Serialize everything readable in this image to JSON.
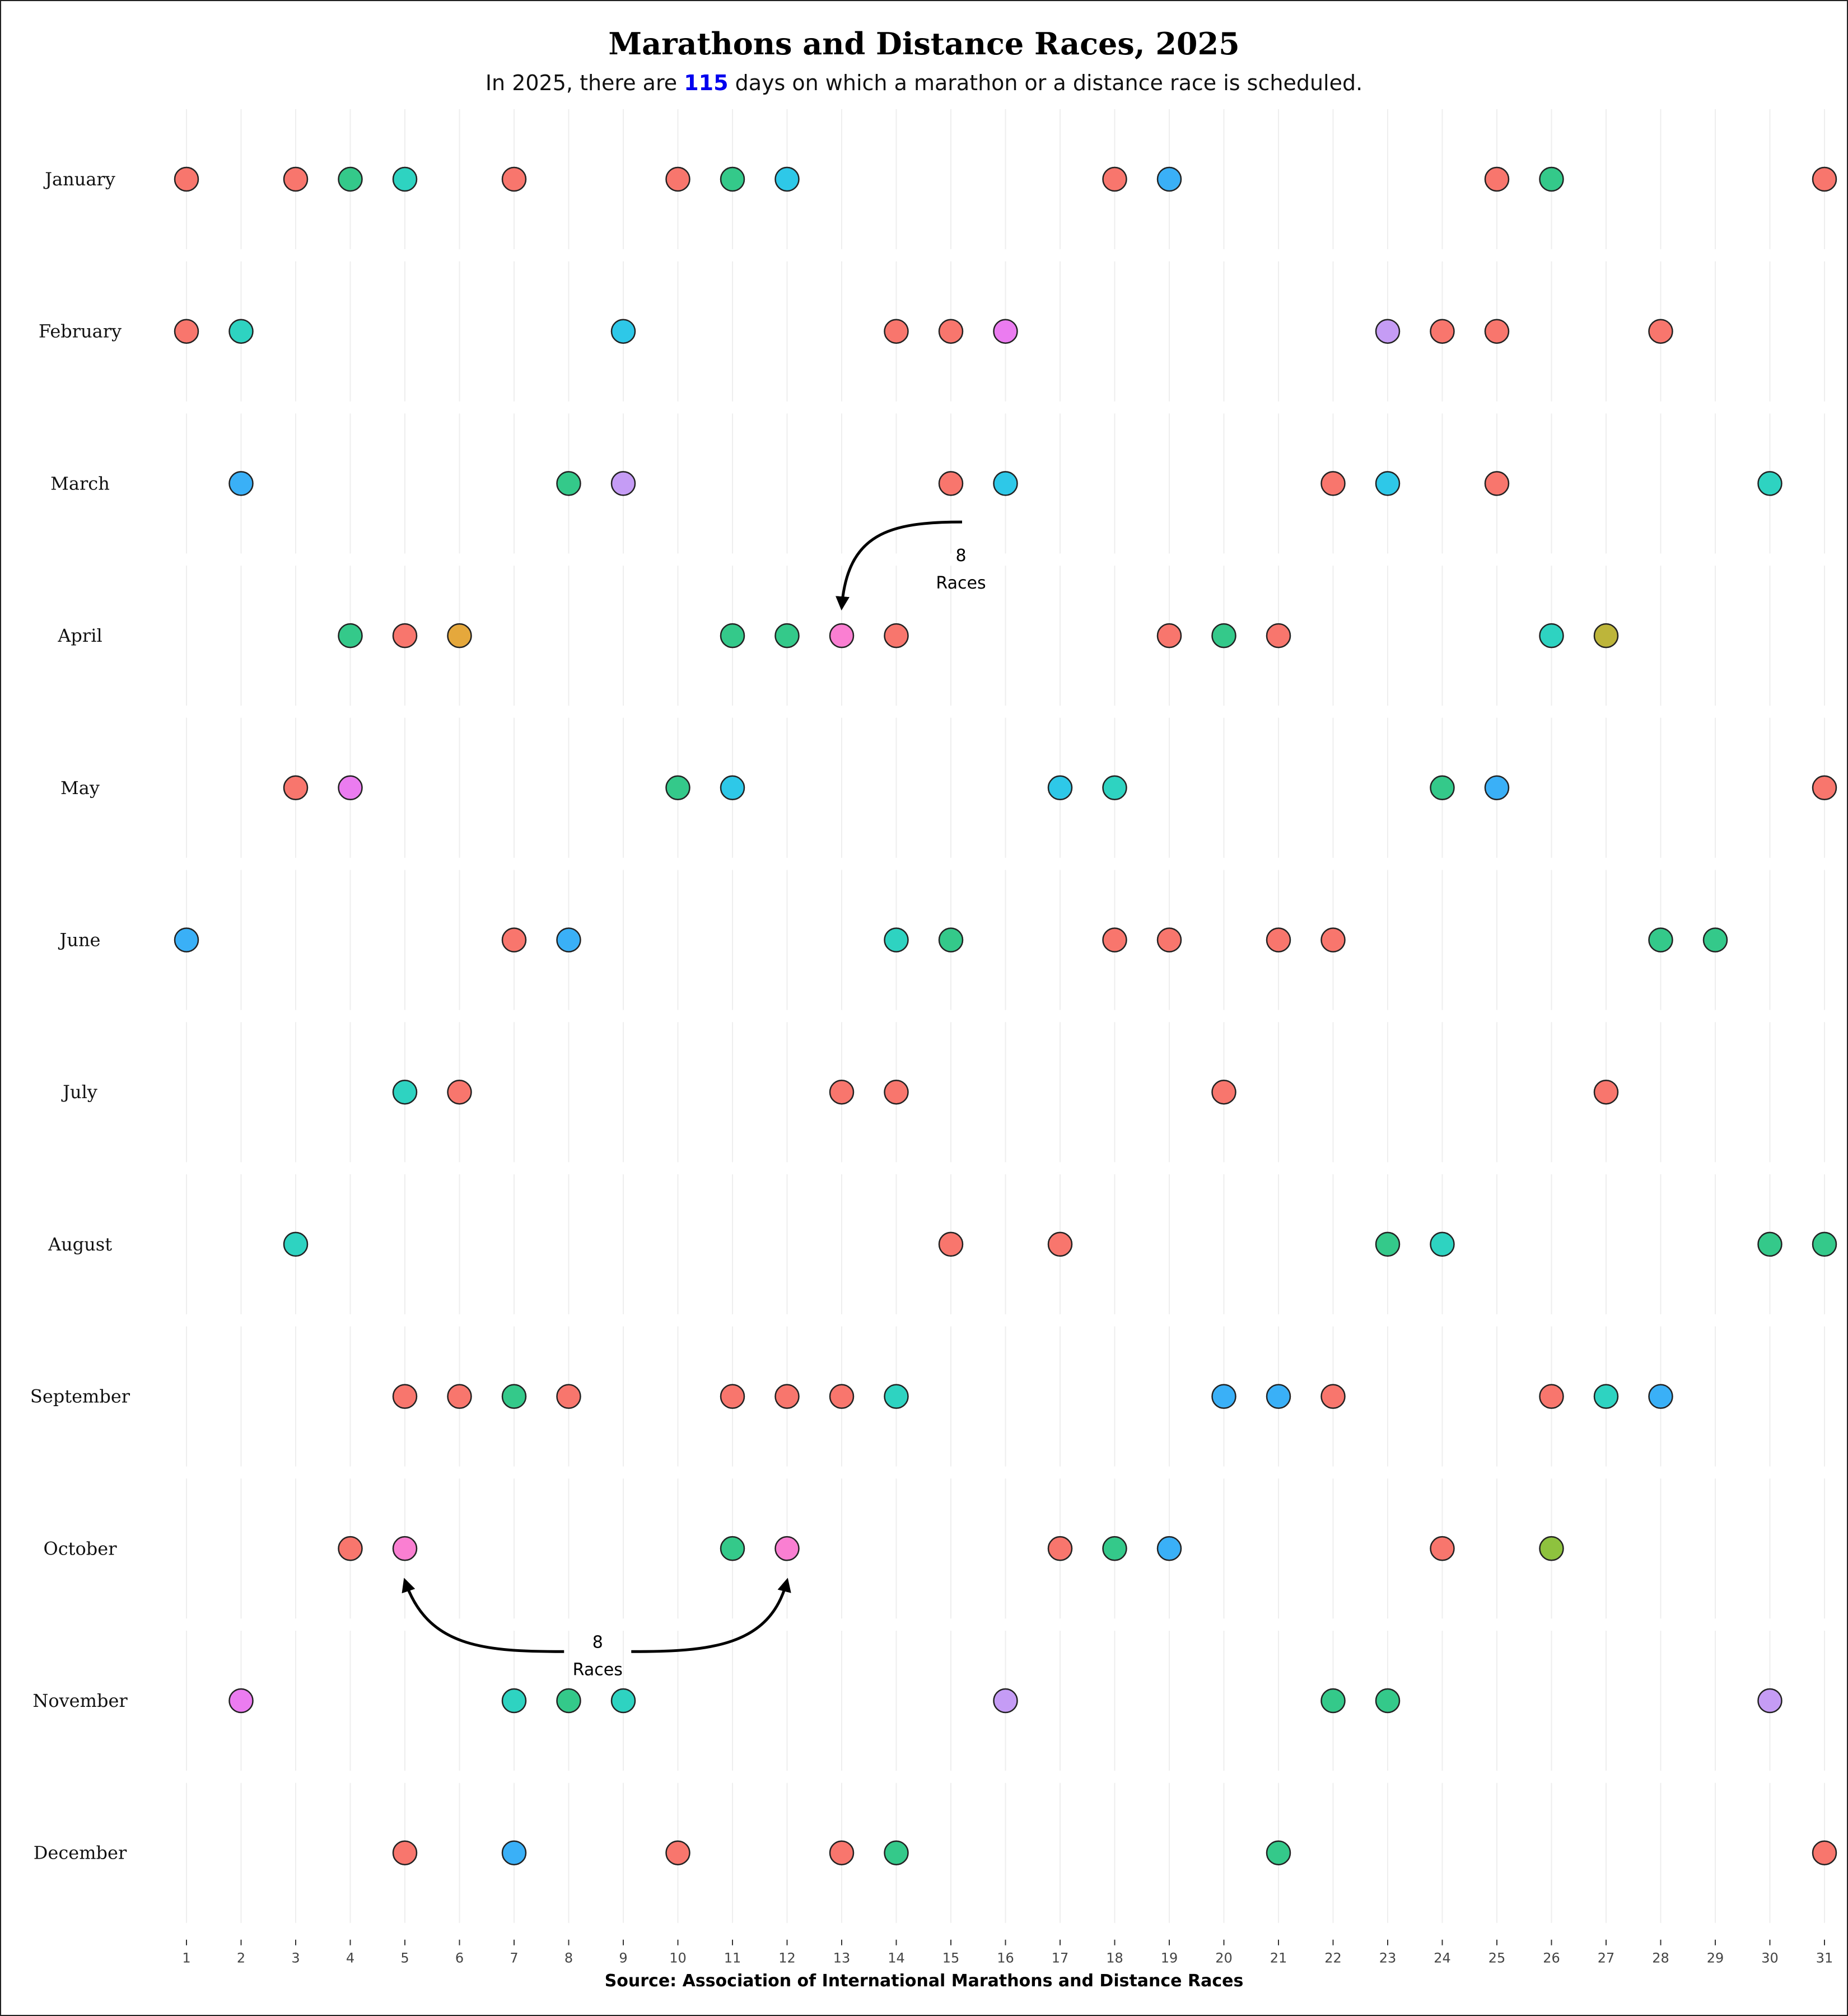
{
  "title": "Marathons and Distance Races, 2025",
  "subtitle": {
    "before": "In 2025, there are ",
    "highlight": "115",
    "after": " days on which a marathon or a distance race is scheduled."
  },
  "source": "Source: Association of International  Marathons and Distance Races",
  "colors": {
    "1": "#F8766D",
    "2": "#34C98A",
    "3": "#2ED3C1",
    "4": "#2EC8E8",
    "5": "#3AB0F7",
    "6": "#C59CF5",
    "7": "#EB7CF0",
    "8": "#FA7FD2",
    "outline": "#222222",
    "other_a": "#E5A83C",
    "other_b": "#BDB53A",
    "other_c": "#8EC23E",
    "grid": "#EEEEEE",
    "text": "#111111",
    "highlight": "#0000EE"
  },
  "chart_data": {
    "type": "scatter",
    "title": "Marathons and Distance Races, 2025",
    "x_ticks": [
      1,
      2,
      3,
      4,
      5,
      6,
      7,
      8,
      9,
      10,
      11,
      12,
      13,
      14,
      15,
      16,
      17,
      18,
      19,
      20,
      21,
      22,
      23,
      24,
      25,
      26,
      27,
      28,
      29,
      30,
      31
    ],
    "xlim": [
      1,
      31
    ],
    "grid": true,
    "months": [
      {
        "name": "January",
        "points": [
          {
            "day": 1,
            "races": 1
          },
          {
            "day": 3,
            "races": 1
          },
          {
            "day": 4,
            "races": 2
          },
          {
            "day": 5,
            "races": 3
          },
          {
            "day": 7,
            "races": 1
          },
          {
            "day": 10,
            "races": 1
          },
          {
            "day": 11,
            "races": 2
          },
          {
            "day": 12,
            "races": 4
          },
          {
            "day": 18,
            "races": 1
          },
          {
            "day": 19,
            "races": 5
          },
          {
            "day": 25,
            "races": 1
          },
          {
            "day": 26,
            "races": 2
          },
          {
            "day": 31,
            "races": 1
          }
        ]
      },
      {
        "name": "February",
        "points": [
          {
            "day": 1,
            "races": 1
          },
          {
            "day": 2,
            "races": 3
          },
          {
            "day": 9,
            "races": 4
          },
          {
            "day": 14,
            "races": 1
          },
          {
            "day": 15,
            "races": 1
          },
          {
            "day": 16,
            "races": 7
          },
          {
            "day": 23,
            "races": 6
          },
          {
            "day": 24,
            "races": 1
          },
          {
            "day": 25,
            "races": 1
          },
          {
            "day": 28,
            "races": 1
          }
        ]
      },
      {
        "name": "March",
        "points": [
          {
            "day": 2,
            "races": 5
          },
          {
            "day": 8,
            "races": 2
          },
          {
            "day": 9,
            "races": 6
          },
          {
            "day": 15,
            "races": 1
          },
          {
            "day": 16,
            "races": 4
          },
          {
            "day": 22,
            "races": 1
          },
          {
            "day": 23,
            "races": 4
          },
          {
            "day": 25,
            "races": 1
          },
          {
            "day": 30,
            "races": 3
          }
        ]
      },
      {
        "name": "April",
        "points": [
          {
            "day": 4,
            "races": 2
          },
          {
            "day": 5,
            "races": 1
          },
          {
            "day": 6,
            "races": "other_a"
          },
          {
            "day": 11,
            "races": 2
          },
          {
            "day": 12,
            "races": 2
          },
          {
            "day": 13,
            "races": 8
          },
          {
            "day": 14,
            "races": 1
          },
          {
            "day": 19,
            "races": 1
          },
          {
            "day": 20,
            "races": 2
          },
          {
            "day": 21,
            "races": 1
          },
          {
            "day": 26,
            "races": 3
          },
          {
            "day": 27,
            "races": "other_b"
          }
        ]
      },
      {
        "name": "May",
        "points": [
          {
            "day": 3,
            "races": 1
          },
          {
            "day": 4,
            "races": 7
          },
          {
            "day": 10,
            "races": 2
          },
          {
            "day": 11,
            "races": 4
          },
          {
            "day": 17,
            "races": 4
          },
          {
            "day": 18,
            "races": 3
          },
          {
            "day": 24,
            "races": 2
          },
          {
            "day": 25,
            "races": 5
          },
          {
            "day": 31,
            "races": 1
          }
        ]
      },
      {
        "name": "June",
        "points": [
          {
            "day": 1,
            "races": 5
          },
          {
            "day": 7,
            "races": 1
          },
          {
            "day": 8,
            "races": 5
          },
          {
            "day": 14,
            "races": 3
          },
          {
            "day": 15,
            "races": 2
          },
          {
            "day": 18,
            "races": 1
          },
          {
            "day": 19,
            "races": 1
          },
          {
            "day": 21,
            "races": 1
          },
          {
            "day": 22,
            "races": 1
          },
          {
            "day": 28,
            "races": 2
          },
          {
            "day": 29,
            "races": 2
          }
        ]
      },
      {
        "name": "July",
        "points": [
          {
            "day": 5,
            "races": 3
          },
          {
            "day": 6,
            "races": 1
          },
          {
            "day": 13,
            "races": 1
          },
          {
            "day": 14,
            "races": 1
          },
          {
            "day": 20,
            "races": 1
          },
          {
            "day": 27,
            "races": 1
          }
        ]
      },
      {
        "name": "August",
        "points": [
          {
            "day": 3,
            "races": 3
          },
          {
            "day": 15,
            "races": 1
          },
          {
            "day": 17,
            "races": 1
          },
          {
            "day": 23,
            "races": 2
          },
          {
            "day": 24,
            "races": 3
          },
          {
            "day": 30,
            "races": 2
          },
          {
            "day": 31,
            "races": 2
          }
        ]
      },
      {
        "name": "September",
        "points": [
          {
            "day": 5,
            "races": 1
          },
          {
            "day": 6,
            "races": 1
          },
          {
            "day": 7,
            "races": 2
          },
          {
            "day": 8,
            "races": 1
          },
          {
            "day": 11,
            "races": 1
          },
          {
            "day": 12,
            "races": 1
          },
          {
            "day": 13,
            "races": 1
          },
          {
            "day": 14,
            "races": 3
          },
          {
            "day": 20,
            "races": 5
          },
          {
            "day": 21,
            "races": 5
          },
          {
            "day": 22,
            "races": 1
          },
          {
            "day": 26,
            "races": 1
          },
          {
            "day": 27,
            "races": 3
          },
          {
            "day": 28,
            "races": 5
          }
        ]
      },
      {
        "name": "October",
        "points": [
          {
            "day": 4,
            "races": 1
          },
          {
            "day": 5,
            "races": 8
          },
          {
            "day": 11,
            "races": 2
          },
          {
            "day": 12,
            "races": 8
          },
          {
            "day": 17,
            "races": 1
          },
          {
            "day": 18,
            "races": 2
          },
          {
            "day": 19,
            "races": 5
          },
          {
            "day": 24,
            "races": 1
          },
          {
            "day": 26,
            "races": "other_c"
          }
        ]
      },
      {
        "name": "November",
        "points": [
          {
            "day": 2,
            "races": 7
          },
          {
            "day": 7,
            "races": 3
          },
          {
            "day": 8,
            "races": 2
          },
          {
            "day": 9,
            "races": 3
          },
          {
            "day": 16,
            "races": 6
          },
          {
            "day": 22,
            "races": 2
          },
          {
            "day": 23,
            "races": 2
          },
          {
            "day": 30,
            "races": 6
          }
        ]
      },
      {
        "name": "December",
        "points": [
          {
            "day": 5,
            "races": 1
          },
          {
            "day": 7,
            "races": 5
          },
          {
            "day": 10,
            "races": 1
          },
          {
            "day": 13,
            "races": 1
          },
          {
            "day": 14,
            "races": 2
          },
          {
            "day": 21,
            "races": 2
          },
          {
            "day": 31,
            "races": 1
          }
        ]
      }
    ],
    "annotations": [
      {
        "number": "8",
        "label": "Races",
        "month": "April",
        "targets": [
          13
        ]
      },
      {
        "number": "8",
        "label": "Races",
        "month": "October",
        "targets": [
          5,
          12
        ]
      }
    ]
  }
}
